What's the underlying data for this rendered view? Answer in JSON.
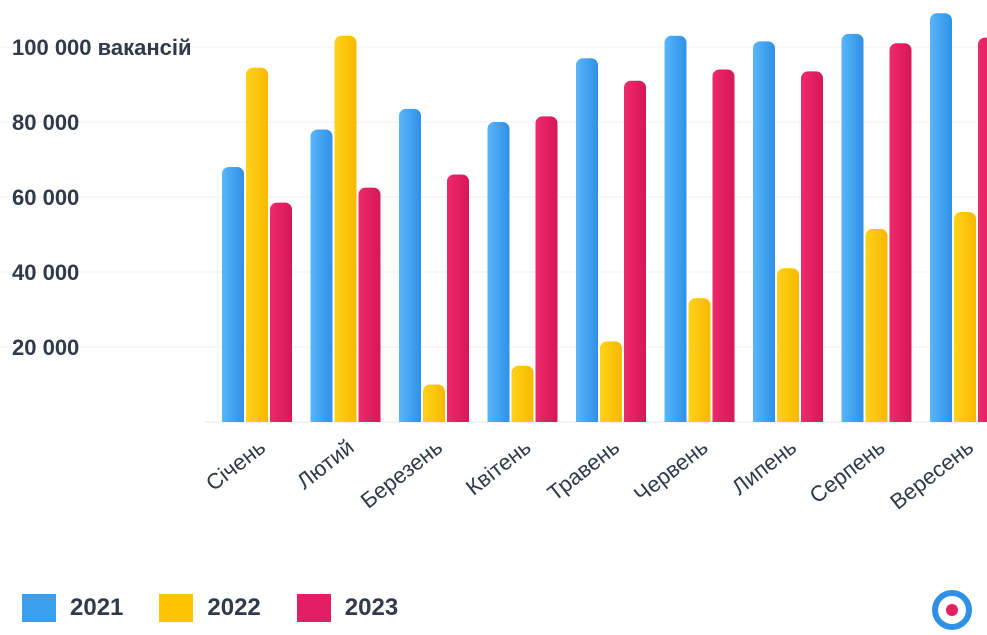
{
  "chart_data": {
    "type": "bar",
    "categories": [
      "Січень",
      "Лютий",
      "Березень",
      "Квітень",
      "Травень",
      "Червень",
      "Липень",
      "Серпень",
      "Вересень"
    ],
    "series": [
      {
        "name": "2021",
        "color": "#3aa0ee",
        "values": [
          68000,
          78000,
          83500,
          80000,
          97000,
          103000,
          101500,
          103500,
          109000
        ]
      },
      {
        "name": "2022",
        "color": "#ffc400",
        "values": [
          94500,
          103000,
          10000,
          15000,
          21500,
          33000,
          41000,
          51500,
          56000
        ]
      },
      {
        "name": "2023",
        "color": "#e11f62",
        "values": [
          58500,
          62500,
          66000,
          81500,
          91000,
          94000,
          93500,
          101000,
          102500
        ]
      }
    ],
    "yticks": [
      {
        "value": 20000,
        "label": "20 000"
      },
      {
        "value": 40000,
        "label": "40 000"
      },
      {
        "value": 60000,
        "label": "60 000"
      },
      {
        "value": 80000,
        "label": "80 000"
      },
      {
        "value": 100000,
        "label": "100 000 вакансій"
      }
    ],
    "ylim": [
      0,
      110000
    ],
    "grid": true,
    "legend_position": "bottom-left",
    "title": "",
    "xlabel": "",
    "ylabel": ""
  },
  "logo_icon": "rabota-target-logo-icon"
}
